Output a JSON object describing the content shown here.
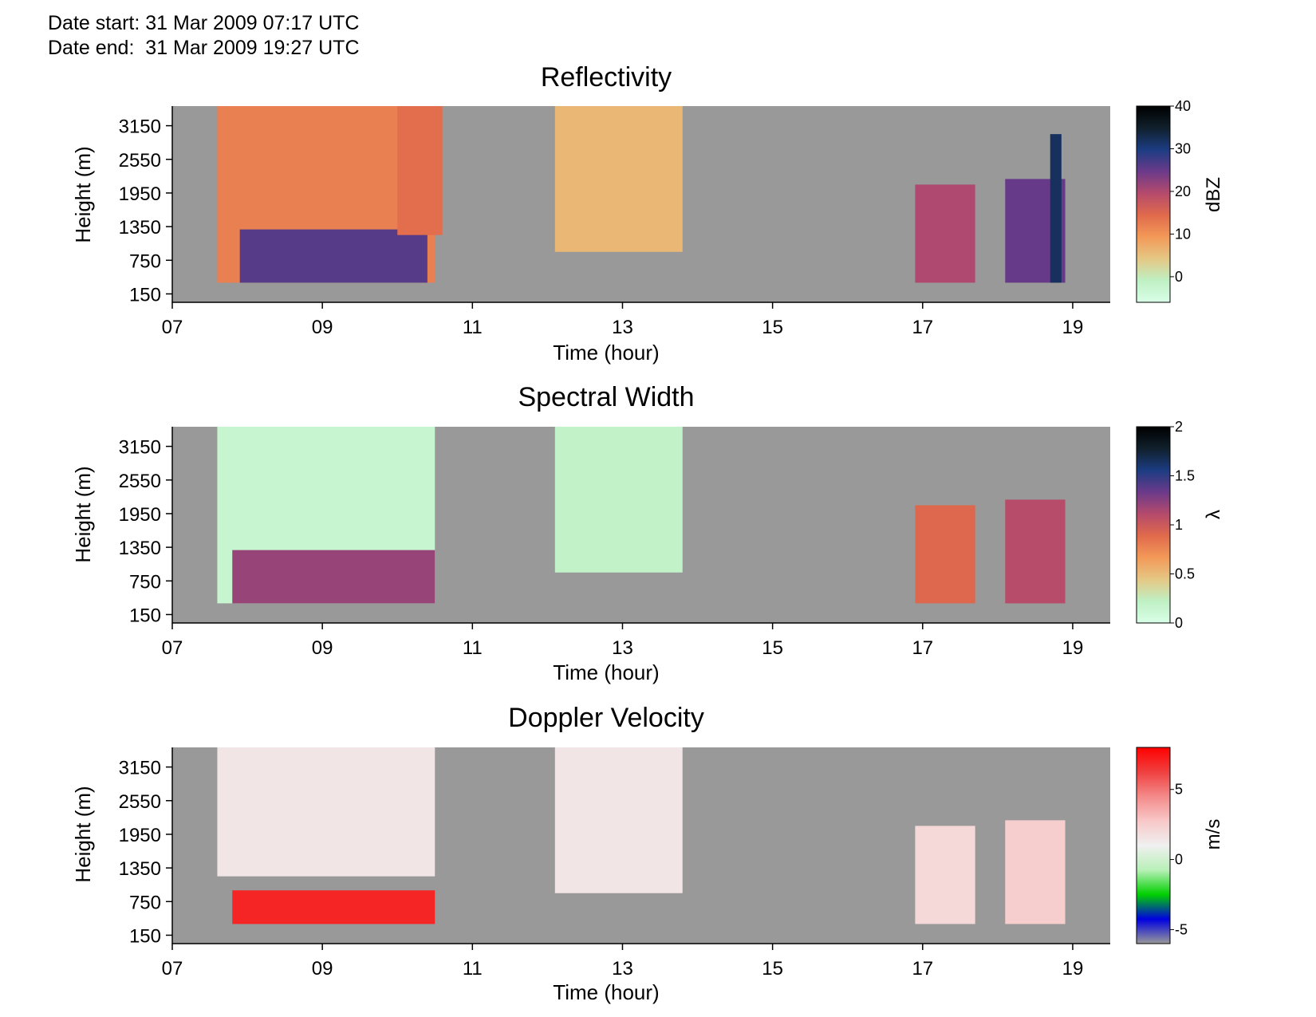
{
  "header": {
    "date_start": "Date start: 31 Mar 2009 07:17 UTC",
    "date_end": "Date end:  31 Mar 2009 19:27 UTC"
  },
  "colors": {
    "background_nodata": "#999999",
    "axis": "#000000"
  },
  "chart_data": [
    {
      "type": "heatmap",
      "title": "Reflectivity",
      "xlabel": "Time (hour)",
      "ylabel": "Height (m)",
      "x_ticks": [
        "07",
        "09",
        "11",
        "13",
        "15",
        "17",
        "19"
      ],
      "x_tick_values": [
        7,
        9,
        11,
        13,
        15,
        17,
        19
      ],
      "xlim": [
        7,
        19.5
      ],
      "y_ticks": [
        "150",
        "750",
        "1350",
        "1950",
        "2550",
        "3150"
      ],
      "y_tick_values": [
        150,
        750,
        1350,
        1950,
        2550,
        3150
      ],
      "ylim": [
        0,
        3500
      ],
      "colorbar": {
        "label": "dBZ",
        "ticks": [
          "0",
          "10",
          "20",
          "30",
          "40"
        ],
        "tick_values": [
          0,
          10,
          20,
          30,
          40
        ],
        "range": [
          -6,
          40
        ],
        "colors": [
          "#d9ffe7",
          "#bff0c4",
          "#e5c784",
          "#f39958",
          "#e06a4c",
          "#b54a6c",
          "#6b3a8a",
          "#1c3c82",
          "#10202c",
          "#000000"
        ]
      },
      "regions": [
        {
          "t0": 7.6,
          "t1": 10.5,
          "h0": 350,
          "h1": 3500,
          "value": 12
        },
        {
          "t0": 7.9,
          "t1": 10.4,
          "h0": 350,
          "h1": 1300,
          "value": 26
        },
        {
          "t0": 10.0,
          "t1": 10.6,
          "h0": 1200,
          "h1": 3500,
          "value": 14
        },
        {
          "t0": 12.1,
          "t1": 13.8,
          "h0": 900,
          "h1": 3500,
          "value": 6
        },
        {
          "t0": 16.9,
          "t1": 17.7,
          "h0": 350,
          "h1": 2100,
          "value": 20
        },
        {
          "t0": 18.1,
          "t1": 18.9,
          "h0": 350,
          "h1": 2200,
          "value": 25
        },
        {
          "t0": 18.7,
          "t1": 18.85,
          "h0": 350,
          "h1": 3000,
          "value": 32
        }
      ]
    },
    {
      "type": "heatmap",
      "title": "Spectral Width",
      "xlabel": "Time (hour)",
      "ylabel": "Height (m)",
      "x_ticks": [
        "07",
        "09",
        "11",
        "13",
        "15",
        "17",
        "19"
      ],
      "x_tick_values": [
        7,
        9,
        11,
        13,
        15,
        17,
        19
      ],
      "xlim": [
        7,
        19.5
      ],
      "y_ticks": [
        "150",
        "750",
        "1350",
        "1950",
        "2550",
        "3150"
      ],
      "y_tick_values": [
        150,
        750,
        1350,
        1950,
        2550,
        3150
      ],
      "ylim": [
        0,
        3500
      ],
      "colorbar": {
        "label": "λ",
        "ticks": [
          "0",
          "0.5",
          "1",
          "1.5",
          "2"
        ],
        "tick_values": [
          0,
          0.5,
          1,
          1.5,
          2
        ],
        "range": [
          0,
          2
        ],
        "colors": [
          "#d9ffe7",
          "#bff0c4",
          "#e5c784",
          "#f39958",
          "#e06a4c",
          "#b54a6c",
          "#6b3a8a",
          "#1c3c82",
          "#10202c",
          "#000000"
        ]
      },
      "regions": [
        {
          "t0": 7.6,
          "t1": 10.5,
          "h0": 350,
          "h1": 3500,
          "value": 0.15
        },
        {
          "t0": 7.8,
          "t1": 10.5,
          "h0": 350,
          "h1": 1300,
          "value": 1.2
        },
        {
          "t0": 12.1,
          "t1": 13.8,
          "h0": 900,
          "h1": 3500,
          "value": 0.2
        },
        {
          "t0": 16.9,
          "t1": 17.7,
          "h0": 350,
          "h1": 2100,
          "value": 0.9
        },
        {
          "t0": 18.1,
          "t1": 18.9,
          "h0": 350,
          "h1": 2200,
          "value": 1.1
        }
      ]
    },
    {
      "type": "heatmap",
      "title": "Doppler Velocity",
      "xlabel": "Time (hour)",
      "ylabel": "Height (m)",
      "x_ticks": [
        "07",
        "09",
        "11",
        "13",
        "15",
        "17",
        "19"
      ],
      "x_tick_values": [
        7,
        9,
        11,
        13,
        15,
        17,
        19
      ],
      "xlim": [
        7,
        19.5
      ],
      "y_ticks": [
        "150",
        "750",
        "1350",
        "1950",
        "2550",
        "3150"
      ],
      "y_tick_values": [
        150,
        750,
        1350,
        1950,
        2550,
        3150
      ],
      "ylim": [
        0,
        3500
      ],
      "colorbar": {
        "label": "m/s",
        "ticks": [
          "-5",
          "0",
          "5"
        ],
        "tick_values": [
          -5,
          0,
          5
        ],
        "range": [
          -6,
          8
        ],
        "colors": [
          "#999999",
          "#0000e0",
          "#00d000",
          "#b8f0b8",
          "#f0f0f0",
          "#f8c8c8",
          "#f48a8a",
          "#f04040",
          "#ff0000"
        ]
      },
      "regions": [
        {
          "t0": 7.6,
          "t1": 10.5,
          "h0": 1200,
          "h1": 3500,
          "value": 1.5
        },
        {
          "t0": 7.8,
          "t1": 10.5,
          "h0": 350,
          "h1": 950,
          "value": 7.0
        },
        {
          "t0": 12.1,
          "t1": 13.8,
          "h0": 900,
          "h1": 3500,
          "value": 1.5
        },
        {
          "t0": 16.9,
          "t1": 17.7,
          "h0": 350,
          "h1": 2100,
          "value": 2.0
        },
        {
          "t0": 18.1,
          "t1": 18.9,
          "h0": 350,
          "h1": 2200,
          "value": 2.5
        }
      ]
    }
  ]
}
